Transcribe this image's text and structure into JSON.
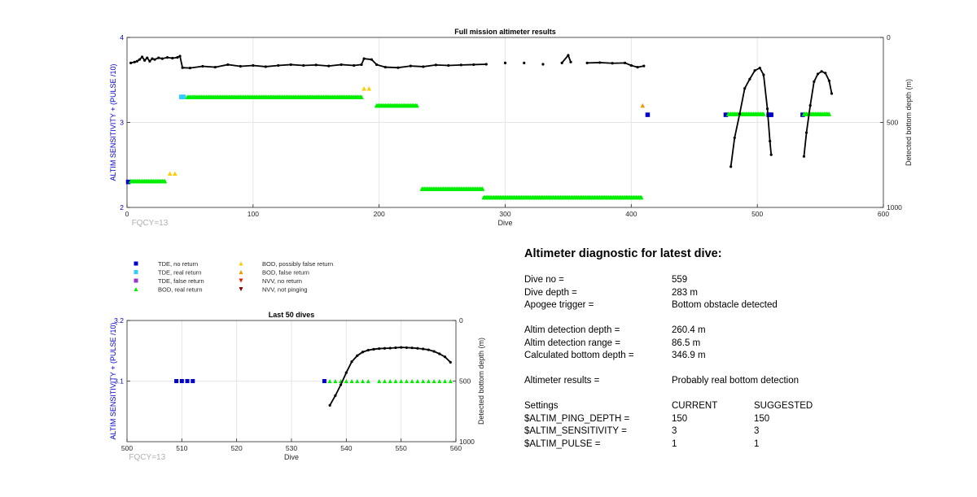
{
  "chart_data": [
    {
      "type": "scatter",
      "title": "Full mission altimeter results",
      "xlabel": "Dive",
      "ylabel": "ALTIM SENSITIVITY + (PULSE /10)",
      "y2label": "Detected bottom depth (m)",
      "xlim": [
        0,
        600
      ],
      "ylim": [
        2,
        4
      ],
      "y2lim": [
        1000,
        0
      ],
      "x_ticks": [
        "0",
        "100",
        "200",
        "300",
        "400",
        "500",
        "600"
      ],
      "y_ticks": [
        "2",
        "3",
        "4"
      ],
      "y2_ticks": [
        "0",
        "500",
        "1000"
      ],
      "note": "FQCY=13",
      "grid": true,
      "series": [
        {
          "name": "TDE, no return",
          "color": "#0000cc",
          "marker": "square",
          "points": [
            [
              1,
              2.3
            ],
            [
              44,
              3.3
            ],
            [
              413,
              3.09
            ],
            [
              475,
              3.09
            ],
            [
              509,
              3.09
            ],
            [
              510,
              3.09
            ],
            [
              511,
              3.09
            ],
            [
              536,
              3.09
            ]
          ]
        },
        {
          "name": "TDE, real return",
          "color": "#33ccff",
          "marker": "square",
          "points": [
            [
              43,
              3.3
            ],
            [
              45,
              3.3
            ]
          ]
        },
        {
          "name": "BOD, real return",
          "color": "#00ee00",
          "marker": "triangle-up",
          "ranges": [
            [
              3,
              30,
              2.31
            ],
            [
              48,
              186,
              3.3
            ],
            [
              198,
              230,
              3.2
            ],
            [
              234,
              282,
              2.22
            ],
            [
              283,
              408,
              2.12
            ],
            [
              477,
              505,
              3.1
            ],
            [
              537,
              557,
              3.1
            ]
          ]
        },
        {
          "name": "BOD, possibly false return",
          "color": "#ffcc00",
          "marker": "triangle-up",
          "points": [
            [
              34,
              2.4
            ],
            [
              38,
              2.4
            ],
            [
              188,
              3.4
            ],
            [
              192,
              3.4
            ]
          ]
        },
        {
          "name": "BOD, false return",
          "color": "#ee9900",
          "marker": "triangle-up",
          "points": [
            [
              409,
              3.2
            ]
          ]
        },
        {
          "name": "NVV, no return",
          "color": "#dd2200",
          "marker": "triangle-down",
          "points": []
        },
        {
          "name": "NVV, not pinging",
          "color": "#880000",
          "marker": "triangle-down",
          "points": []
        }
      ],
      "depth_line": [
        [
          3,
          150
        ],
        [
          6,
          145
        ],
        [
          8,
          140
        ],
        [
          10,
          130
        ],
        [
          12,
          115
        ],
        [
          14,
          135
        ],
        [
          16,
          120
        ],
        [
          18,
          140
        ],
        [
          20,
          125
        ],
        [
          22,
          130
        ],
        [
          25,
          120
        ],
        [
          28,
          125
        ],
        [
          32,
          118
        ],
        [
          36,
          122
        ],
        [
          40,
          118
        ],
        [
          42,
          110
        ],
        [
          44,
          178
        ],
        [
          50,
          180
        ],
        [
          60,
          170
        ],
        [
          70,
          175
        ],
        [
          80,
          160
        ],
        [
          90,
          170
        ],
        [
          100,
          165
        ],
        [
          110,
          172
        ],
        [
          120,
          165
        ],
        [
          130,
          160
        ],
        [
          140,
          165
        ],
        [
          150,
          162
        ],
        [
          160,
          168
        ],
        [
          170,
          160
        ],
        [
          180,
          165
        ],
        [
          186,
          160
        ],
        [
          188,
          125
        ],
        [
          194,
          130
        ],
        [
          198,
          160
        ],
        [
          205,
          175
        ],
        [
          215,
          178
        ],
        [
          225,
          168
        ],
        [
          235,
          172
        ],
        [
          245,
          162
        ],
        [
          255,
          165
        ],
        [
          265,
          162
        ],
        [
          275,
          160
        ],
        [
          285,
          158
        ],
        [
          300,
          150
        ],
        [
          315,
          150
        ],
        [
          330,
          158
        ],
        [
          345,
          150
        ],
        [
          350,
          105
        ],
        [
          352,
          145
        ],
        [
          365,
          150
        ],
        [
          375,
          148
        ],
        [
          385,
          152
        ],
        [
          395,
          150
        ],
        [
          400,
          165
        ],
        [
          405,
          175
        ],
        [
          410,
          168
        ],
        [
          479,
          760
        ],
        [
          482,
          590
        ],
        [
          486,
          450
        ],
        [
          490,
          300
        ],
        [
          494,
          245
        ],
        [
          498,
          195
        ],
        [
          502,
          180
        ],
        [
          505,
          220
        ],
        [
          508,
          420
        ],
        [
          510,
          610
        ],
        [
          511,
          690
        ],
        [
          537,
          700
        ],
        [
          539,
          560
        ],
        [
          542,
          400
        ],
        [
          545,
          260
        ],
        [
          548,
          215
        ],
        [
          551,
          200
        ],
        [
          554,
          210
        ],
        [
          557,
          255
        ],
        [
          559,
          330
        ]
      ]
    },
    {
      "type": "scatter",
      "title": "Last 50 dives",
      "xlabel": "Dive",
      "ylabel": "ALTIM SENSITIVITY + (PULSE /10)",
      "y2label": "Detected bottom depth (m)",
      "xlim": [
        500,
        560
      ],
      "ylim": [
        3,
        3.2
      ],
      "y2lim": [
        1000,
        0
      ],
      "x_ticks": [
        "500",
        "510",
        "520",
        "530",
        "540",
        "550",
        "560"
      ],
      "y_ticks": [
        "3.1",
        "3.2"
      ],
      "y2_ticks": [
        "0",
        "500",
        "1000"
      ],
      "note": "FQCY=13",
      "grid": true,
      "series": [
        {
          "name": "TDE, no return",
          "color": "#0000cc",
          "marker": "square",
          "points": [
            [
              509,
              3.1
            ],
            [
              510,
              3.1
            ],
            [
              511,
              3.1
            ],
            [
              512,
              3.1
            ],
            [
              536,
              3.1
            ]
          ]
        },
        {
          "name": "BOD, real return",
          "color": "#00ee00",
          "marker": "triangle-up",
          "points": [
            [
              537,
              3.1
            ],
            [
              538,
              3.1
            ],
            [
              539,
              3.1
            ],
            [
              540,
              3.1
            ],
            [
              541,
              3.1
            ],
            [
              542,
              3.1
            ],
            [
              543,
              3.1
            ],
            [
              544,
              3.1
            ],
            [
              546,
              3.1
            ],
            [
              547,
              3.1
            ],
            [
              548,
              3.1
            ],
            [
              549,
              3.1
            ],
            [
              550,
              3.1
            ],
            [
              551,
              3.1
            ],
            [
              552,
              3.1
            ],
            [
              553,
              3.1
            ],
            [
              554,
              3.1
            ],
            [
              555,
              3.1
            ],
            [
              556,
              3.1
            ],
            [
              557,
              3.1
            ],
            [
              558,
              3.1
            ],
            [
              559,
              3.1
            ]
          ]
        }
      ],
      "depth_line": [
        [
          537,
          700
        ],
        [
          538,
          620
        ],
        [
          539,
          530
        ],
        [
          540,
          430
        ],
        [
          541,
          340
        ],
        [
          542,
          290
        ],
        [
          543,
          260
        ],
        [
          544,
          245
        ],
        [
          545,
          237
        ],
        [
          546,
          232
        ],
        [
          547,
          230
        ],
        [
          548,
          228
        ],
        [
          549,
          225
        ],
        [
          550,
          222
        ],
        [
          551,
          224
        ],
        [
          552,
          226
        ],
        [
          553,
          230
        ],
        [
          554,
          235
        ],
        [
          555,
          242
        ],
        [
          556,
          255
        ],
        [
          557,
          275
        ],
        [
          558,
          300
        ],
        [
          559,
          345
        ]
      ]
    }
  ],
  "legend": [
    {
      "label": "TDE, no return",
      "color": "#0000cc",
      "marker": "square"
    },
    {
      "label": "TDE, real return",
      "color": "#33ccff",
      "marker": "square"
    },
    {
      "label": "TDE, false return",
      "color": "#9933cc",
      "marker": "square"
    },
    {
      "label": "BOD, real return",
      "color": "#00ee00",
      "marker": "triangle-up"
    },
    {
      "label": "BOD, possibly false return",
      "color": "#ffcc00",
      "marker": "triangle-up"
    },
    {
      "label": "BOD, false return",
      "color": "#ee9900",
      "marker": "triangle-up"
    },
    {
      "label": "NVV, no return",
      "color": "#dd2200",
      "marker": "triangle-down"
    },
    {
      "label": "NVV, not pinging",
      "color": "#880000",
      "marker": "triangle-down"
    }
  ],
  "diagnostic": {
    "heading": "Altimeter diagnostic for latest dive:",
    "dive_no_label": "Dive no =",
    "dive_no": "559",
    "dive_depth_label": "Dive depth =",
    "dive_depth": "283 m",
    "apogee_label": "Apogee trigger =",
    "apogee": "Bottom obstacle detected",
    "altim_depth_label": "Altim detection depth =",
    "altim_depth": "260.4 m",
    "altim_range_label": "Altim detection range =",
    "altim_range": "86.5 m",
    "calc_depth_label": "Calculated bottom depth =",
    "calc_depth": "346.9 m",
    "results_label": "Altimeter results =",
    "results": "Probably real bottom detection",
    "settings_label": "Settings",
    "current_label": "CURRENT",
    "suggested_label": "SUGGESTED",
    "settings": [
      {
        "name": "$ALTIM_PING_DEPTH =",
        "current": "150",
        "suggested": "150"
      },
      {
        "name": "$ALTIM_SENSITIVITY =",
        "current": "3",
        "suggested": "3"
      },
      {
        "name": "$ALTIM_PULSE =",
        "current": "1",
        "suggested": "1"
      }
    ]
  }
}
